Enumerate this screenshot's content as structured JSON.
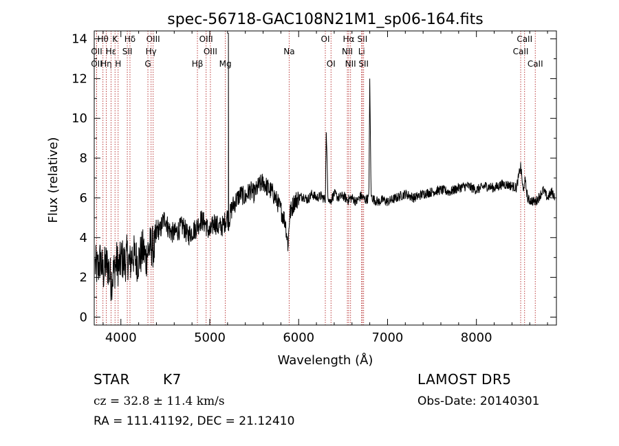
{
  "chart_data": {
    "type": "line",
    "title": "spec-56718-GAC108N21M1_sp06-164.fits",
    "xlabel": "Wavelength (Å)",
    "ylabel": "Flux (relative)",
    "xlim": [
      3700,
      8900
    ],
    "ylim": [
      -0.4,
      14.4
    ],
    "xticks": [
      4000,
      5000,
      6000,
      7000,
      8000
    ],
    "yticks": [
      0,
      2,
      4,
      6,
      8,
      10,
      12,
      14
    ],
    "line_color": "#000000",
    "marker_color": "#b22222",
    "lines": [
      {
        "label": "Hθ",
        "wavelength": 3798,
        "row": 0
      },
      {
        "label": "OII",
        "wavelength": 3727,
        "row": 1
      },
      {
        "label": "OII",
        "wavelength": 3727,
        "row": 2
      },
      {
        "label": "Hη",
        "wavelength": 3835,
        "row": 2
      },
      {
        "label": "Hε",
        "wavelength": 3889,
        "row": 1
      },
      {
        "label": "K",
        "wavelength": 3934,
        "row": 0
      },
      {
        "label": "H",
        "wavelength": 3969,
        "row": 2
      },
      {
        "label": "Hδ",
        "wavelength": 4102,
        "row": 0
      },
      {
        "label": "SII",
        "wavelength": 4072,
        "row": 1
      },
      {
        "label": "OIII",
        "wavelength": 4363,
        "row": 0
      },
      {
        "label": "Hγ",
        "wavelength": 4340,
        "row": 1
      },
      {
        "label": "G",
        "wavelength": 4304,
        "row": 2
      },
      {
        "label": "OIII",
        "wavelength": 4959,
        "row": 0
      },
      {
        "label": "OIII",
        "wavelength": 5007,
        "row": 1
      },
      {
        "label": "Hβ",
        "wavelength": 4861,
        "row": 2
      },
      {
        "label": "Mg",
        "wavelength": 5175,
        "row": 2
      },
      {
        "label": "Na",
        "wavelength": 5893,
        "row": 1
      },
      {
        "label": "OI",
        "wavelength": 6300,
        "row": 0
      },
      {
        "label": "OI",
        "wavelength": 6364,
        "row": 2
      },
      {
        "label": "Hα",
        "wavelength": 6563,
        "row": 0
      },
      {
        "label": "NII",
        "wavelength": 6548,
        "row": 1
      },
      {
        "label": "NII",
        "wavelength": 6584,
        "row": 2
      },
      {
        "label": "SII",
        "wavelength": 6717,
        "row": 0
      },
      {
        "label": "Li",
        "wavelength": 6708,
        "row": 1
      },
      {
        "label": "SII",
        "wavelength": 6731,
        "row": 2
      },
      {
        "label": "CaII",
        "wavelength": 8542,
        "row": 0
      },
      {
        "label": "CaII",
        "wavelength": 8498,
        "row": 1
      },
      {
        "label": "CaII",
        "wavelength": 8662,
        "row": 2
      }
    ],
    "series": [
      {
        "x": [
          3710,
          3740,
          3770,
          3800,
          3830,
          3860,
          3890,
          3920,
          3950,
          3980,
          4010,
          4040,
          4070,
          4100,
          4130,
          4160,
          4190,
          4220,
          4250,
          4280,
          4300,
          4320,
          4350,
          4380,
          4410,
          4440,
          4470,
          4500,
          4530,
          4560,
          4600,
          4650,
          4700,
          4750,
          4800,
          4850,
          4900,
          4950,
          5000,
          5050,
          5100,
          5150,
          5200,
          5210,
          5250,
          5300,
          5350,
          5400,
          5450,
          5500,
          5550,
          5600,
          5650,
          5700,
          5750,
          5800,
          5850,
          5880,
          5900,
          5950,
          6000,
          6050,
          6100,
          6150,
          6200,
          6250,
          6300,
          6310,
          6330,
          6350,
          6400,
          6450,
          6500,
          6550,
          6600,
          6650,
          6700,
          6750,
          6790,
          6800,
          6815,
          6850,
          6900,
          6950,
          7000,
          7050,
          7100,
          7150,
          7200,
          7300,
          7400,
          7500,
          7600,
          7700,
          7800,
          7900,
          8000,
          8100,
          8200,
          8300,
          8400,
          8450,
          8498,
          8530,
          8542,
          8580,
          8662,
          8700,
          8750,
          8800,
          8850,
          8880
        ],
        "y": [
          2.6,
          2.4,
          2.9,
          2.2,
          2.7,
          2.5,
          1.8,
          2.3,
          2.8,
          2.5,
          3.0,
          2.7,
          3.1,
          2.6,
          3.2,
          3.0,
          2.8,
          3.1,
          3.4,
          2.9,
          3.3,
          3.5,
          3.6,
          3.4,
          4.5,
          4.3,
          4.8,
          5.0,
          4.5,
          4.3,
          4.2,
          4.4,
          4.6,
          4.1,
          4.3,
          4.5,
          4.9,
          4.7,
          4.2,
          4.8,
          4.5,
          4.6,
          5.1,
          4.8,
          5.5,
          5.9,
          6.2,
          6.0,
          6.4,
          6.2,
          6.6,
          6.8,
          6.5,
          6.3,
          5.9,
          5.4,
          4.8,
          3.6,
          5.2,
          5.8,
          6.0,
          6.1,
          5.9,
          6.2,
          6.0,
          6.1,
          5.9,
          9.3,
          6.1,
          5.8,
          6.2,
          6.0,
          6.1,
          5.9,
          6.0,
          5.8,
          6.1,
          5.9,
          6.0,
          11.8,
          6.1,
          5.9,
          5.8,
          5.9,
          5.8,
          5.9,
          6.0,
          6.1,
          6.2,
          6.0,
          6.2,
          6.3,
          6.4,
          6.3,
          6.5,
          6.6,
          6.4,
          6.6,
          6.5,
          6.7,
          6.6,
          6.5,
          7.6,
          6.2,
          7.0,
          5.9,
          5.8,
          6.0,
          6.4,
          6.0,
          6.3,
          6.1
        ]
      }
    ]
  },
  "info": {
    "object_class": "STAR",
    "subclass": "K7",
    "survey": "LAMOST DR5",
    "redshift_text": "cz = 32.8 ± 11.4 km/s",
    "obs_date_text": "Obs-Date: 20140301",
    "coords_text": "RA = 111.41192, DEC =  21.12410"
  }
}
